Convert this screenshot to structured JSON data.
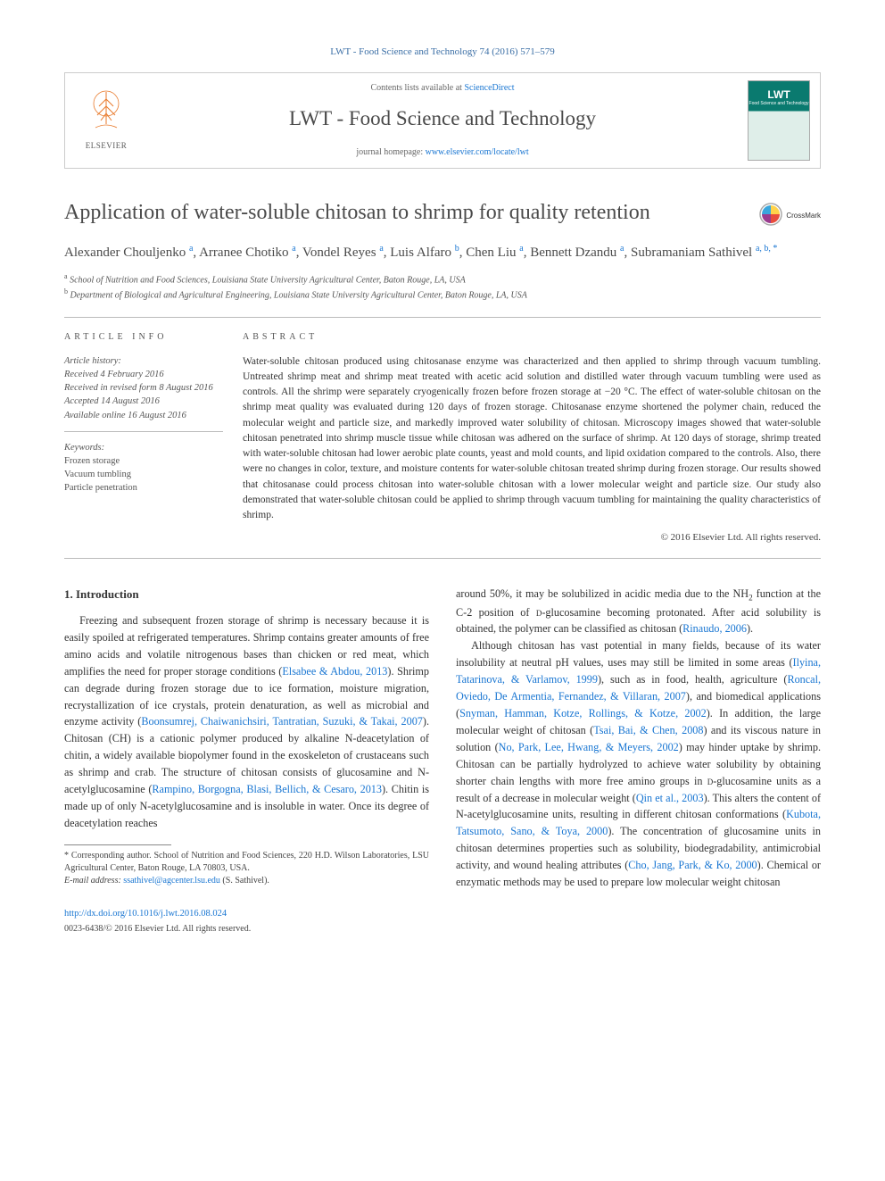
{
  "header": {
    "citation": "LWT - Food Science and Technology 74 (2016) 571–579",
    "contents_prefix": "Contents lists available at ",
    "contents_link": "ScienceDirect",
    "journal_name": "LWT - Food Science and Technology",
    "homepage_prefix": "journal homepage: ",
    "homepage_url": "www.elsevier.com/locate/lwt",
    "publisher_label": "ELSEVIER",
    "cover_title": "LWT",
    "cover_subtitle": "Food Science and Technology"
  },
  "crossmark_label": "CrossMark",
  "article": {
    "title": "Application of water-soluble chitosan to shrimp for quality retention",
    "authors_html": "Alexander Chouljenko <sup>a</sup>, Arranee Chotiko <sup>a</sup>, Vondel Reyes <sup>a</sup>, Luis Alfaro <sup>b</sup>, Chen Liu <sup>a</sup>, Bennett Dzandu <sup>a</sup>, Subramaniam Sathivel <sup>a, b, <span class='corr'>*</span></sup>",
    "affiliations": {
      "a": "School of Nutrition and Food Sciences, Louisiana State University Agricultural Center, Baton Rouge, LA, USA",
      "b": "Department of Biological and Agricultural Engineering, Louisiana State University Agricultural Center, Baton Rouge, LA, USA"
    }
  },
  "info": {
    "section_label": "ARTICLE INFO",
    "history_head": "Article history:",
    "received": "Received 4 February 2016",
    "revised": "Received in revised form 8 August 2016",
    "accepted": "Accepted 14 August 2016",
    "online": "Available online 16 August 2016",
    "keywords_head": "Keywords:",
    "keywords": [
      "Frozen storage",
      "Vacuum tumbling",
      "Particle penetration"
    ]
  },
  "abstract": {
    "section_label": "ABSTRACT",
    "text": "Water-soluble chitosan produced using chitosanase enzyme was characterized and then applied to shrimp through vacuum tumbling. Untreated shrimp meat and shrimp meat treated with acetic acid solution and distilled water through vacuum tumbling were used as controls. All the shrimp were separately cryogenically frozen before frozen storage at −20 °C. The effect of water-soluble chitosan on the shrimp meat quality was evaluated during 120 days of frozen storage. Chitosanase enzyme shortened the polymer chain, reduced the molecular weight and particle size, and markedly improved water solubility of chitosan. Microscopy images showed that water-soluble chitosan penetrated into shrimp muscle tissue while chitosan was adhered on the surface of shrimp. At 120 days of storage, shrimp treated with water-soluble chitosan had lower aerobic plate counts, yeast and mold counts, and lipid oxidation compared to the controls. Also, there were no changes in color, texture, and moisture contents for water-soluble chitosan treated shrimp during frozen storage. Our results showed that chitosanase could process chitosan into water-soluble chitosan with a lower molecular weight and particle size. Our study also demonstrated that water-soluble chitosan could be applied to shrimp through vacuum tumbling for maintaining the quality characteristics of shrimp.",
    "copyright": "© 2016 Elsevier Ltd. All rights reserved."
  },
  "intro": {
    "heading": "1. Introduction",
    "col1_p1_a": "Freezing and subsequent frozen storage of shrimp is necessary because it is easily spoiled at refrigerated temperatures. Shrimp contains greater amounts of free amino acids and volatile nitrogenous bases than chicken or red meat, which amplifies the need for proper storage conditions (",
    "col1_r1": "Elsabee & Abdou, 2013",
    "col1_p1_b": "). Shrimp can degrade during frozen storage due to ice formation, moisture migration, recrystallization of ice crystals, protein denaturation, as well as microbial and enzyme activity (",
    "col1_r2": "Boonsumrej, Chaiwanichsiri, Tantratian, Suzuki, & Takai, 2007",
    "col1_p1_c": "). Chitosan (CH) is a cationic polymer produced by alkaline N-deacetylation of chitin, a widely available biopolymer found in the exoskeleton of crustaceans such as shrimp and crab. The structure of chitosan consists of glucosamine and N-acetylglucosamine (",
    "col1_r3": "Rampino, Borgogna, Blasi, Bellich, & Cesaro, 2013",
    "col1_p1_d": "). Chitin is made up of only N-acetylglucosamine and is insoluble in water. Once its degree of deacetylation reaches",
    "col2_p1_a": "around 50%, it may be solubilized in acidic media due to the NH",
    "col2_p1_b": " function at the C-2 position of ",
    "col2_sc1": "d",
    "col2_p1_c": "-glucosamine becoming protonated. After acid solubility is obtained, the polymer can be classified as chitosan (",
    "col2_r1": "Rinaudo, 2006",
    "col2_p1_d": ").",
    "col2_p2_a": "Although chitosan has vast potential in many fields, because of its water insolubility at neutral pH values, uses may still be limited in some areas (",
    "col2_r2": "Ilyina, Tatarinova, & Varlamov, 1999",
    "col2_p2_b": "), such as in food, health, agriculture (",
    "col2_r3": "Roncal, Oviedo, De Armentia, Fernandez, & Villaran, 2007",
    "col2_p2_c": "), and biomedical applications (",
    "col2_r4": "Snyman, Hamman, Kotze, Rollings, & Kotze, 2002",
    "col2_p2_d": "). In addition, the large molecular weight of chitosan (",
    "col2_r5": "Tsai, Bai, & Chen, 2008",
    "col2_p2_e": ") and its viscous nature in solution (",
    "col2_r6": "No, Park, Lee, Hwang, & Meyers, 2002",
    "col2_p2_f": ") may hinder uptake by shrimp. Chitosan can be partially hydrolyzed to achieve water solubility by obtaining shorter chain lengths with more free amino groups in ",
    "col2_sc2": "d",
    "col2_p2_g": "-glucosamine units as a result of a decrease in molecular weight (",
    "col2_r7": "Qin et al., 2003",
    "col2_p2_h": "). This alters the content of N-acetylglucosamine units, resulting in different chitosan conformations (",
    "col2_r8": "Kubota, Tatsumoto, Sano, & Toya, 2000",
    "col2_p2_i": "). The concentration of glucosamine units in chitosan determines properties such as solubility, biodegradability, antimicrobial activity, and wound healing attributes (",
    "col2_r9": "Cho, Jang, Park, & Ko, 2000",
    "col2_p2_j": "). Chemical or enzymatic methods may be used to prepare low molecular weight chitosan"
  },
  "footnote": {
    "corr": "* Corresponding author. School of Nutrition and Food Sciences, 220 H.D. Wilson Laboratories, LSU Agricultural Center, Baton Rouge, LA 70803, USA.",
    "email_label": "E-mail address: ",
    "email": "ssathivel@agcenter.lsu.edu",
    "email_name": " (S. Sathivel)."
  },
  "footer": {
    "doi": "http://dx.doi.org/10.1016/j.lwt.2016.08.024",
    "issn_line": "0023-6438/© 2016 Elsevier Ltd. All rights reserved."
  },
  "colors": {
    "link": "#1976d2",
    "elsevier_orange": "#e8792b",
    "rule": "#bbbbbb",
    "cover_green": "#0a7a6f"
  }
}
